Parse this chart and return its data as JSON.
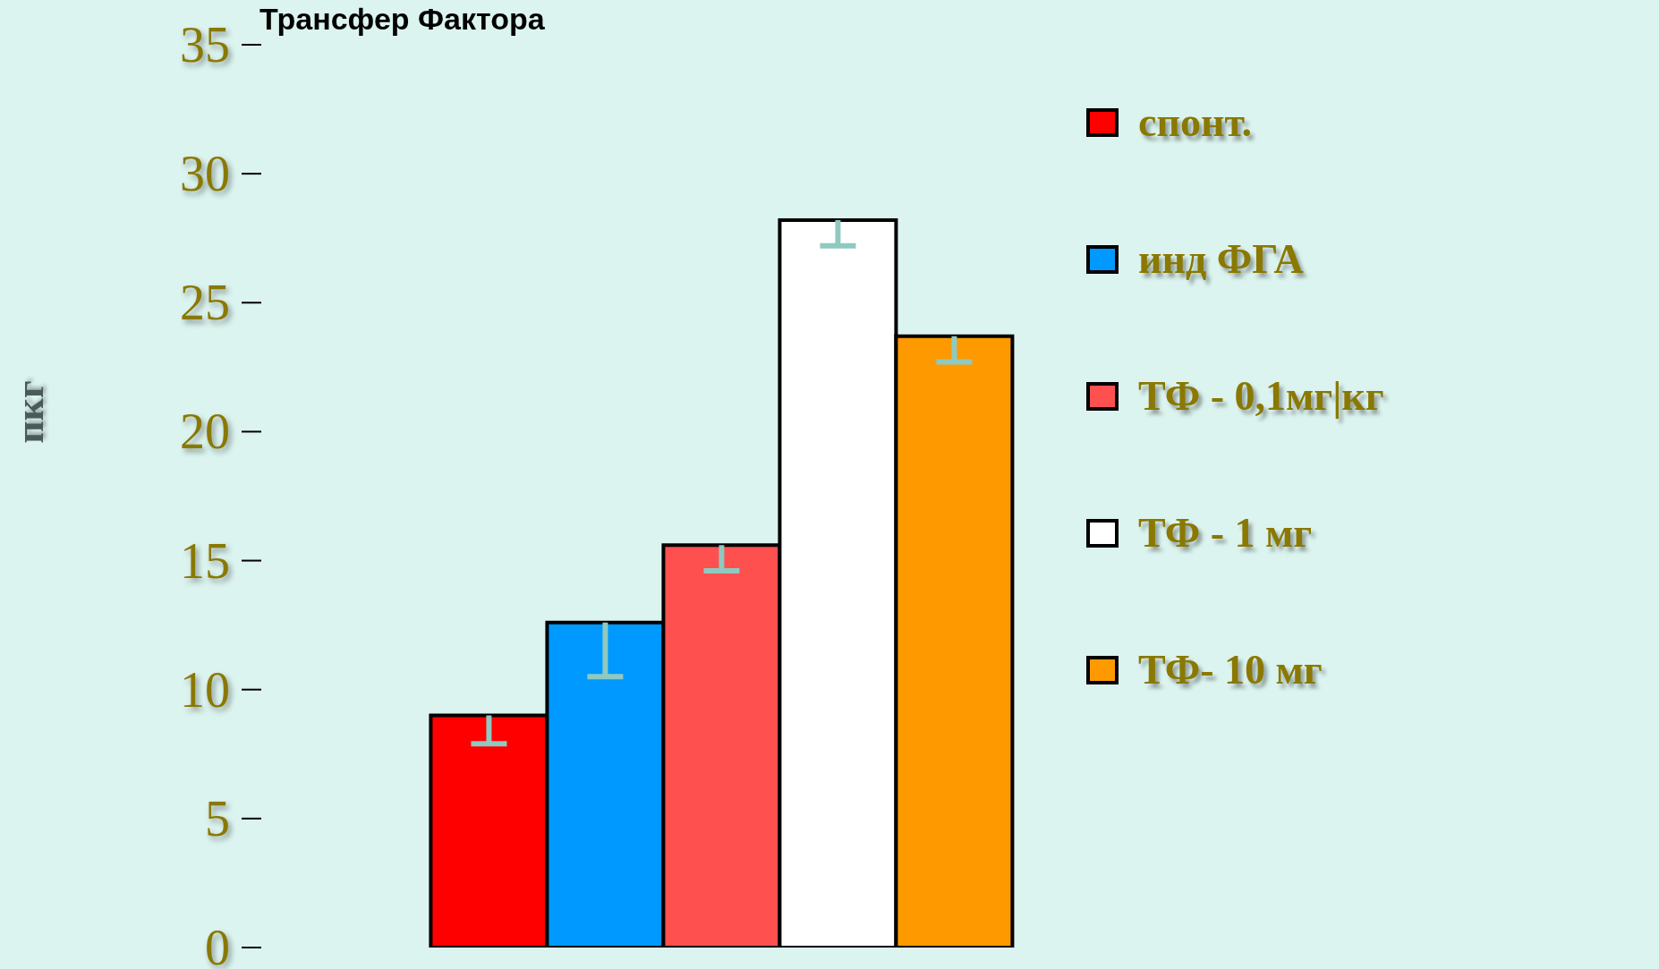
{
  "chart_data": {
    "type": "bar",
    "title": "Трансфер Фактора",
    "ylabel": "пкг",
    "categories": [
      null
    ],
    "series": [
      {
        "name": "спонт.",
        "color": "#ff0000",
        "values": [
          9.0
        ],
        "errors": [
          [
            7.9,
            9.0
          ]
        ]
      },
      {
        "name": "инд ФГА",
        "color": "#0099ff",
        "values": [
          12.6
        ],
        "errors": [
          [
            10.5,
            12.6
          ]
        ]
      },
      {
        "name": "ТФ - 0,1мг|кг",
        "color": "#ff5050",
        "values": [
          15.6
        ],
        "errors": [
          [
            14.6,
            15.6
          ]
        ]
      },
      {
        "name": "ТФ - 1 мг",
        "color": "#ffffff",
        "values": [
          28.2
        ],
        "errors": [
          [
            27.2,
            28.2
          ]
        ]
      },
      {
        "name": "ТФ- 10 мг",
        "color": "#ff9900",
        "values": [
          23.7
        ],
        "errors": [
          [
            22.7,
            23.7
          ]
        ]
      }
    ],
    "ylim": [
      0,
      35
    ],
    "yticks": [
      0,
      5,
      10,
      15,
      20,
      25,
      30,
      35
    ],
    "grid": false,
    "legend": "right"
  }
}
